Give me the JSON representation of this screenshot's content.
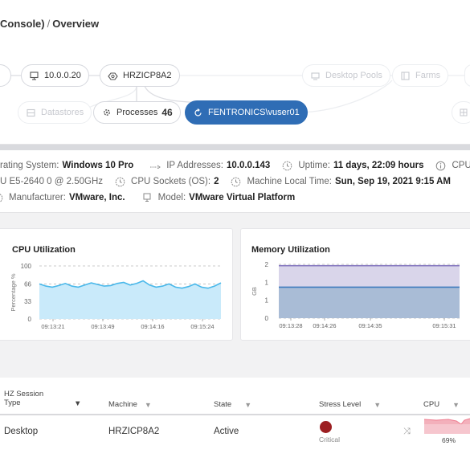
{
  "breadcrumb": {
    "part1": "Console)",
    "sep": "/",
    "part2": "Overview"
  },
  "topology": {
    "left_partial": "er",
    "ip_node": "10.0.0.20",
    "host_node": "HRZICP8A2",
    "desktop_pools": "Desktop Pools",
    "farms": "Farms",
    "datastores": "Datastores",
    "processes_label": "Processes",
    "processes_count": "46",
    "user_node": "FENTRONICS\\vuser01"
  },
  "info": {
    "os_label": "rating System:",
    "os_value": "Windows 10 Pro",
    "ip_label": "IP Addresses:",
    "ip_value": "10.0.0.143",
    "uptime_label": "Uptime:",
    "uptime_value": "11 days, 22:09 hours",
    "cpu_label": "CPU",
    "cpu_model_value": "U E5-2640 0 @ 2.50GHz",
    "sockets_label": "CPU Sockets (OS):",
    "sockets_value": "2",
    "local_time_label": "Machine Local Time:",
    "local_time_value": "Sun, Sep 19, 2021 9:15 AM",
    "manufacturer_label": "Manufacturer:",
    "manufacturer_value": "VMware, Inc.",
    "model_label": "Model:",
    "model_value": "VMware Virtual Platform"
  },
  "chart_data": [
    {
      "type": "area",
      "title": "CPU Utilization",
      "ylabel": "Percentage %",
      "ylim": [
        0,
        100
      ],
      "yticks": [
        "100",
        "66",
        "33",
        "0"
      ],
      "xticks": [
        "09:13:21",
        "09:13:49",
        "09:14:16",
        "09:15:24"
      ],
      "series": [
        {
          "values": [
            66,
            62,
            60,
            63,
            67,
            62,
            60,
            64,
            68,
            65,
            62,
            63,
            67,
            69,
            64,
            67,
            72,
            64,
            60,
            62,
            66,
            60,
            58,
            61,
            66,
            60,
            58,
            62,
            68
          ]
        }
      ],
      "color": "#49b8ea"
    },
    {
      "type": "area",
      "title": "Memory Utilization",
      "ylabel": "GB",
      "ylim": [
        0,
        2
      ],
      "yticks": [
        "2",
        "1",
        "1",
        "0"
      ],
      "xticks": [
        "09:13:28",
        "09:14:26",
        "09:14:35",
        "09:15:31"
      ],
      "series": [
        {
          "values": [
            1.95,
            1.95,
            1.95,
            1.95,
            1.95,
            1.95,
            1.95,
            1.95,
            1.95,
            1.95
          ]
        },
        {
          "values": [
            1.15,
            1.15,
            1.15,
            1.15,
            1.15,
            1.15,
            1.15,
            1.15,
            1.15,
            1.15
          ]
        }
      ]
    }
  ],
  "table": {
    "headers": {
      "session_type_1": "HZ Session",
      "session_type_2": "Type",
      "machine": "Machine",
      "state": "State",
      "stress": "Stress Level",
      "cpu": "CPU"
    },
    "row": {
      "session_type": "Desktop",
      "machine": "HRZICP8A2",
      "state": "Active",
      "stress_label": "Critical",
      "cpu_pct": "69%"
    },
    "colors": {
      "critical": "#9c1f22",
      "spark": "#f2a7b3"
    }
  }
}
